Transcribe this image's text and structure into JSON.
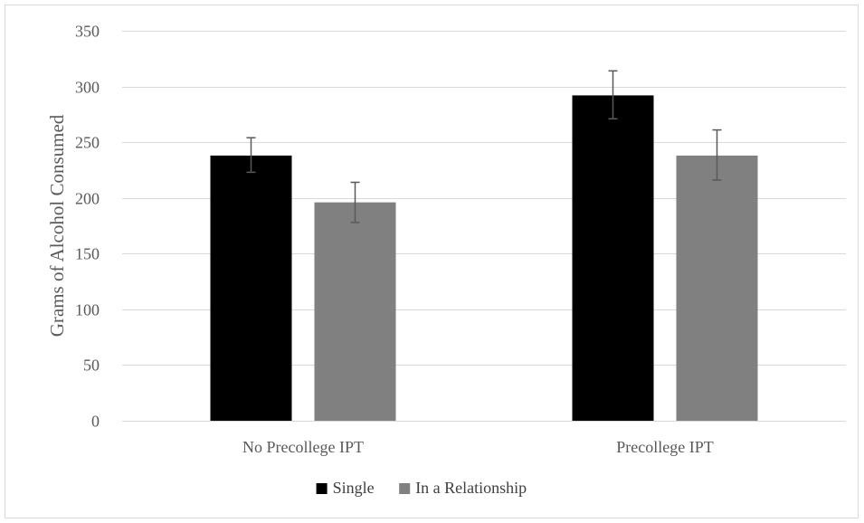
{
  "chart_data": {
    "type": "bar",
    "title": "",
    "xlabel": "",
    "ylabel": "Grams of Alcohol Consumed",
    "categories": [
      "No Precollege IPT",
      "Precollege IPT"
    ],
    "series": [
      {
        "name": "Single",
        "color": "#000000",
        "values": [
          238,
          292
        ],
        "error_low": [
          223,
          271
        ],
        "error_high": [
          254,
          314
        ]
      },
      {
        "name": "In a Relationship",
        "color": "#808080",
        "values": [
          196,
          238
        ],
        "error_low": [
          178,
          216
        ],
        "error_high": [
          214,
          261
        ]
      }
    ],
    "ylim": [
      0,
      350
    ],
    "yticks": [
      0,
      50,
      100,
      150,
      200,
      250,
      300,
      350
    ],
    "grid": true,
    "legend_position": "bottom"
  }
}
